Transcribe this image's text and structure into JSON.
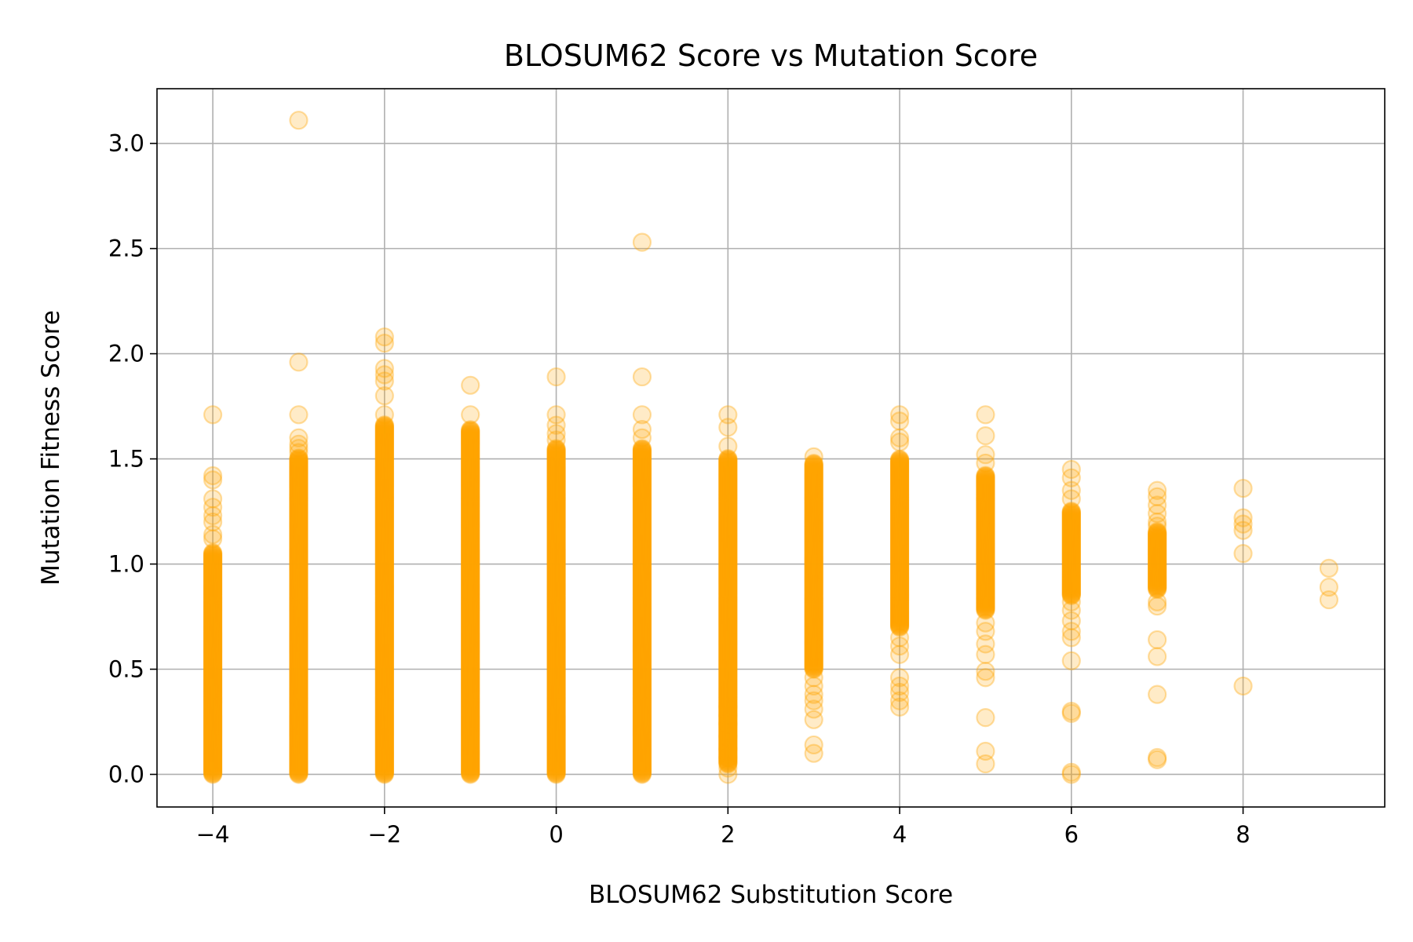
{
  "chart_data": {
    "type": "scatter",
    "title": "BLOSUM62 Score vs Mutation Score",
    "xlabel": "BLOSUM62 Substitution Score",
    "ylabel": "Mutation Fitness Score",
    "xlim": [
      -4.65,
      9.65
    ],
    "ylim": [
      -0.155,
      3.26
    ],
    "xticks": [
      -4,
      -2,
      0,
      2,
      4,
      6,
      8
    ],
    "xtick_labels": [
      "−4",
      "−2",
      "0",
      "2",
      "4",
      "6",
      "8"
    ],
    "yticks": [
      0.0,
      0.5,
      1.0,
      1.5,
      2.0,
      2.5,
      3.0
    ],
    "ytick_labels": [
      "0.0",
      "0.5",
      "1.0",
      "1.5",
      "2.0",
      "2.5",
      "3.0"
    ],
    "grid": true,
    "legend": "none",
    "marker_color": "#FFA500",
    "marker_alpha": 0.22,
    "columns": [
      {
        "x": -4,
        "dense_range": [
          0.0,
          1.05
        ],
        "outliers": [
          1.71,
          1.42,
          1.4,
          1.31,
          1.27,
          1.23,
          1.2,
          1.14,
          1.12
        ]
      },
      {
        "x": -3,
        "dense_range": [
          0.0,
          1.5
        ],
        "outliers": [
          3.11,
          1.96,
          1.71,
          1.6,
          1.57,
          1.55,
          1.53
        ]
      },
      {
        "x": -2,
        "dense_range": [
          0.0,
          1.66
        ],
        "outliers": [
          2.08,
          2.05,
          1.93,
          1.9,
          1.87,
          1.8,
          1.71
        ]
      },
      {
        "x": -1,
        "dense_range": [
          0.0,
          1.64
        ],
        "outliers": [
          1.85,
          1.71
        ]
      },
      {
        "x": 0,
        "dense_range": [
          0.0,
          1.55
        ],
        "outliers": [
          1.89,
          1.71,
          1.66,
          1.62,
          1.59
        ]
      },
      {
        "x": 1,
        "dense_range": [
          0.0,
          1.55
        ],
        "outliers": [
          2.53,
          1.89,
          1.71,
          1.64,
          1.6
        ]
      },
      {
        "x": 2,
        "dense_range": [
          0.05,
          1.5
        ],
        "outliers": [
          1.71,
          1.65,
          1.56,
          0.32,
          0.28,
          0.24,
          0.18,
          0.12,
          0.08,
          0.03,
          0.0
        ]
      },
      {
        "x": 3,
        "dense_range": [
          0.5,
          1.48
        ],
        "outliers": [
          1.51,
          0.46,
          0.42,
          0.38,
          0.35,
          0.31,
          0.26,
          0.14,
          0.1
        ]
      },
      {
        "x": 4,
        "dense_range": [
          0.7,
          1.5
        ],
        "outliers": [
          1.71,
          1.68,
          1.6,
          1.58,
          0.65,
          0.61,
          0.57,
          0.46,
          0.42,
          0.39,
          0.35,
          0.32
        ]
      },
      {
        "x": 5,
        "dense_range": [
          0.78,
          1.42
        ],
        "outliers": [
          1.71,
          1.61,
          1.52,
          1.48,
          0.72,
          0.68,
          0.62,
          0.57,
          0.49,
          0.46,
          0.27,
          0.11,
          0.05
        ]
      },
      {
        "x": 6,
        "dense_range": [
          0.85,
          1.25
        ],
        "outliers": [
          1.45,
          1.41,
          1.35,
          1.31,
          0.82,
          0.78,
          0.73,
          0.68,
          0.65,
          0.54,
          0.3,
          0.29,
          0.01,
          0.0
        ]
      },
      {
        "x": 7,
        "dense_range": [
          0.88,
          1.15
        ],
        "outliers": [
          1.35,
          1.32,
          1.28,
          1.24,
          1.2,
          1.18,
          0.82,
          0.8,
          0.64,
          0.56,
          0.38,
          0.08,
          0.07
        ]
      },
      {
        "x": 8,
        "dense_range": null,
        "outliers": [
          1.36,
          1.22,
          1.19,
          1.16,
          1.05,
          0.42
        ]
      },
      {
        "x": 9,
        "dense_range": null,
        "outliers": [
          0.98,
          0.89,
          0.83
        ]
      }
    ]
  }
}
